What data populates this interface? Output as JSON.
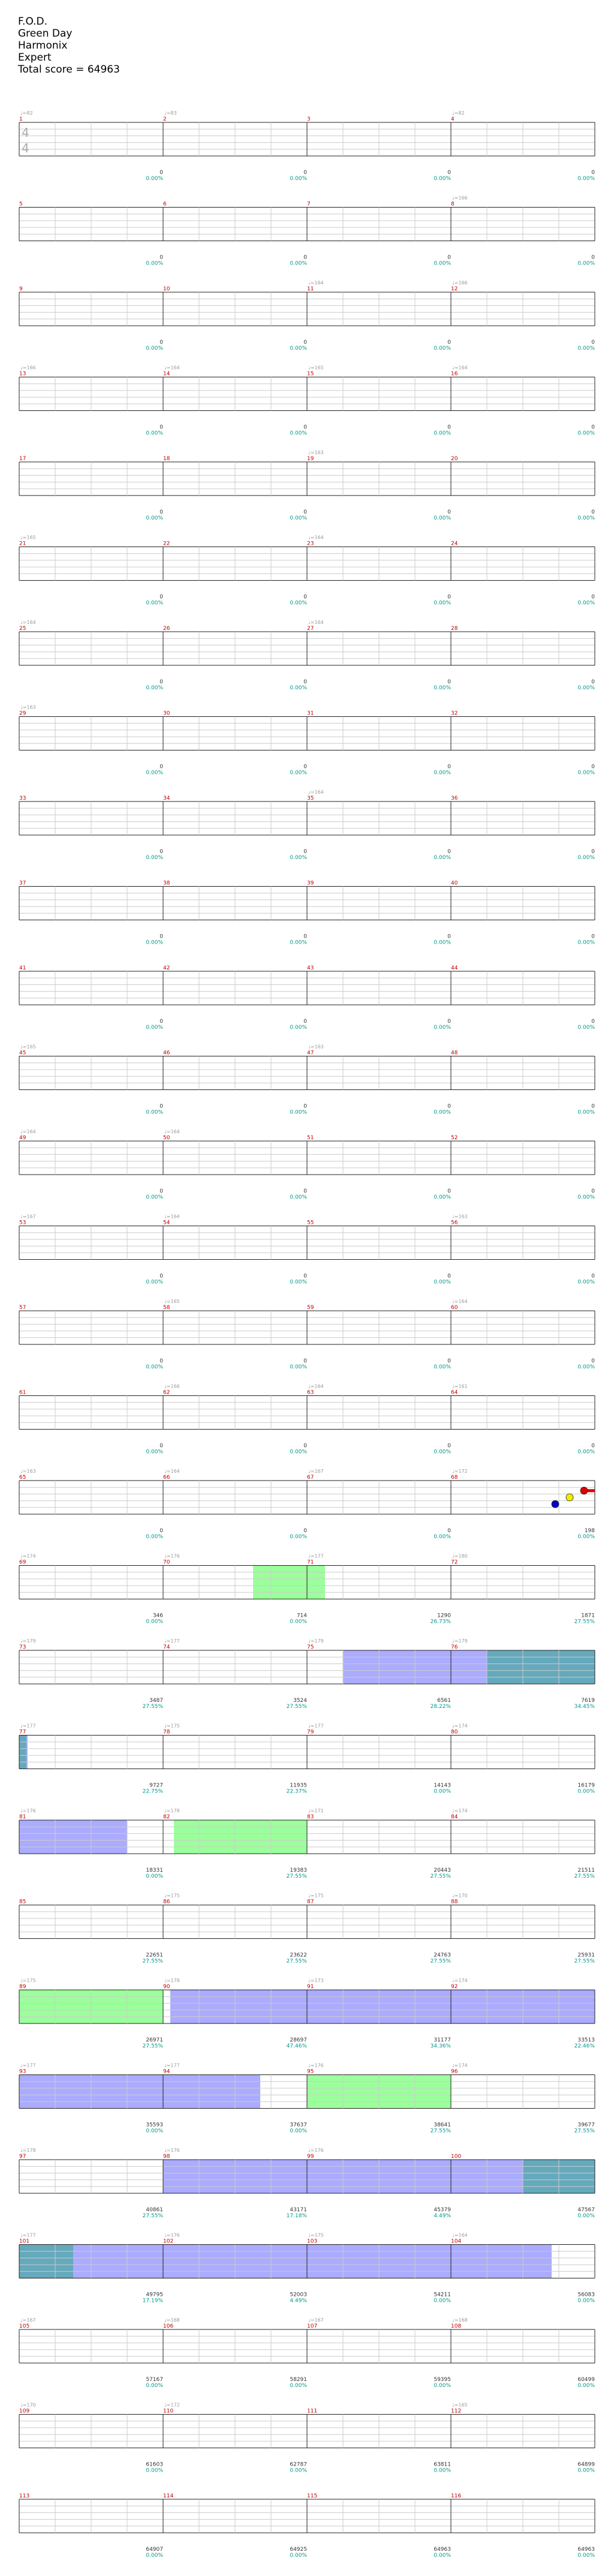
{
  "song": {
    "title": "F.O.D.",
    "artist": "Green Day",
    "studio": "Harmonix",
    "difficulty": "Expert",
    "total_score_label": "Total score = 64963"
  },
  "time_signature": {
    "num": "4",
    "den": "4"
  },
  "colors": {
    "green": "#22cc22",
    "red": "#dd0000",
    "yellow": "#eeee00",
    "blue": "#0000cc",
    "orange": "#ff9900",
    "star_power": "#66ff66",
    "overdrive": "#6666ff",
    "overlap": "#4a9ab0"
  },
  "measures": [
    {
      "n": "1",
      "bpm": "♩=82",
      "score": "0",
      "pct": "0.00%"
    },
    {
      "n": "2",
      "bpm": "♩=83",
      "score": "0",
      "pct": "0.00%"
    },
    {
      "n": "3",
      "bpm": "",
      "score": "0",
      "pct": "0.00%"
    },
    {
      "n": "4",
      "bpm": "♩=82",
      "score": "0",
      "pct": "0.00%"
    },
    {
      "n": "5",
      "bpm": "",
      "score": "0",
      "pct": "0.00%"
    },
    {
      "n": "6",
      "bpm": "",
      "score": "0",
      "pct": "0.00%"
    },
    {
      "n": "7",
      "bpm": "",
      "score": "0",
      "pct": "0.00%"
    },
    {
      "n": "8",
      "bpm": "♩=166",
      "score": "0",
      "pct": "0.00%"
    },
    {
      "n": "9",
      "bpm": "",
      "score": "0",
      "pct": "0.00%"
    },
    {
      "n": "10",
      "bpm": "",
      "score": "0",
      "pct": "0.00%"
    },
    {
      "n": "11",
      "bpm": "♩=164",
      "score": "0",
      "pct": "0.00%"
    },
    {
      "n": "12",
      "bpm": "♩=166",
      "score": "0",
      "pct": "0.00%"
    },
    {
      "n": "13",
      "bpm": "♩=166",
      "score": "0",
      "pct": "0.00%"
    },
    {
      "n": "14",
      "bpm": "♩=164",
      "score": "0",
      "pct": "0.00%"
    },
    {
      "n": "15",
      "bpm": "♩=165",
      "score": "0",
      "pct": "0.00%"
    },
    {
      "n": "16",
      "bpm": "♩=164",
      "score": "0",
      "pct": "0.00%"
    },
    {
      "n": "17",
      "bpm": "",
      "score": "0",
      "pct": "0.00%"
    },
    {
      "n": "18",
      "bpm": "",
      "score": "0",
      "pct": "0.00%"
    },
    {
      "n": "19",
      "bpm": "♩=163",
      "score": "0",
      "pct": "0.00%"
    },
    {
      "n": "20",
      "bpm": "",
      "score": "0",
      "pct": "0.00%"
    },
    {
      "n": "21",
      "bpm": "♩=165",
      "score": "0",
      "pct": "0.00%"
    },
    {
      "n": "22",
      "bpm": "",
      "score": "0",
      "pct": "0.00%"
    },
    {
      "n": "23",
      "bpm": "♩=164",
      "score": "0",
      "pct": "0.00%"
    },
    {
      "n": "24",
      "bpm": "",
      "score": "0",
      "pct": "0.00%"
    },
    {
      "n": "25",
      "bpm": "♩=164",
      "score": "0",
      "pct": "0.00%"
    },
    {
      "n": "26",
      "bpm": "",
      "score": "0",
      "pct": "0.00%"
    },
    {
      "n": "27",
      "bpm": "♩=164",
      "score": "0",
      "pct": "0.00%"
    },
    {
      "n": "28",
      "bpm": "",
      "score": "0",
      "pct": "0.00%"
    },
    {
      "n": "29",
      "bpm": "♩=163",
      "score": "0",
      "pct": "0.00%"
    },
    {
      "n": "30",
      "bpm": "",
      "score": "0",
      "pct": "0.00%"
    },
    {
      "n": "31",
      "bpm": "",
      "score": "0",
      "pct": "0.00%"
    },
    {
      "n": "32",
      "bpm": "",
      "score": "0",
      "pct": "0.00%"
    },
    {
      "n": "33",
      "bpm": "",
      "score": "0",
      "pct": "0.00%"
    },
    {
      "n": "34",
      "bpm": "",
      "score": "0",
      "pct": "0.00%"
    },
    {
      "n": "35",
      "bpm": "♩=164",
      "score": "0",
      "pct": "0.00%"
    },
    {
      "n": "36",
      "bpm": "",
      "score": "0",
      "pct": "0.00%"
    },
    {
      "n": "37",
      "bpm": "",
      "score": "0",
      "pct": "0.00%"
    },
    {
      "n": "38",
      "bpm": "",
      "score": "0",
      "pct": "0.00%"
    },
    {
      "n": "39",
      "bpm": "",
      "score": "0",
      "pct": "0.00%"
    },
    {
      "n": "40",
      "bpm": "",
      "score": "0",
      "pct": "0.00%"
    },
    {
      "n": "41",
      "bpm": "",
      "score": "0",
      "pct": "0.00%"
    },
    {
      "n": "42",
      "bpm": "",
      "score": "0",
      "pct": "0.00%"
    },
    {
      "n": "43",
      "bpm": "",
      "score": "0",
      "pct": "0.00%"
    },
    {
      "n": "44",
      "bpm": "",
      "score": "0",
      "pct": "0.00%"
    },
    {
      "n": "45",
      "bpm": "♩=165",
      "score": "0",
      "pct": "0.00%"
    },
    {
      "n": "46",
      "bpm": "",
      "score": "0",
      "pct": "0.00%"
    },
    {
      "n": "47",
      "bpm": "♩=163",
      "score": "0",
      "pct": "0.00%"
    },
    {
      "n": "48",
      "bpm": "",
      "score": "0",
      "pct": "0.00%"
    },
    {
      "n": "49",
      "bpm": "♩=164",
      "score": "0",
      "pct": "0.00%"
    },
    {
      "n": "50",
      "bpm": "♩=164",
      "score": "0",
      "pct": "0.00%"
    },
    {
      "n": "51",
      "bpm": "",
      "score": "0",
      "pct": "0.00%"
    },
    {
      "n": "52",
      "bpm": "",
      "score": "0",
      "pct": "0.00%"
    },
    {
      "n": "53",
      "bpm": "♩=167",
      "score": "0",
      "pct": "0.00%"
    },
    {
      "n": "54",
      "bpm": "♩=164",
      "score": "0",
      "pct": "0.00%"
    },
    {
      "n": "55",
      "bpm": "",
      "score": "0",
      "pct": "0.00%"
    },
    {
      "n": "56",
      "bpm": "♩=163",
      "score": "0",
      "pct": "0.00%"
    },
    {
      "n": "57",
      "bpm": "",
      "score": "0",
      "pct": "0.00%"
    },
    {
      "n": "58",
      "bpm": "♩=165",
      "score": "0",
      "pct": "0.00%"
    },
    {
      "n": "59",
      "bpm": "",
      "score": "0",
      "pct": "0.00%"
    },
    {
      "n": "60",
      "bpm": "♩=164",
      "score": "0",
      "pct": "0.00%"
    },
    {
      "n": "61",
      "bpm": "",
      "score": "0",
      "pct": "0.00%"
    },
    {
      "n": "62",
      "bpm": "♩=166",
      "score": "0",
      "pct": "0.00%"
    },
    {
      "n": "63",
      "bpm": "♩=164",
      "score": "0",
      "pct": "0.00%"
    },
    {
      "n": "64",
      "bpm": "♩=161",
      "score": "0",
      "pct": "0.00%"
    },
    {
      "n": "65",
      "bpm": "♩=163",
      "score": "0",
      "pct": "0.00%"
    },
    {
      "n": "66",
      "bpm": "♩=164",
      "score": "0",
      "pct": "0.00%"
    },
    {
      "n": "67",
      "bpm": "♩=167",
      "score": "0",
      "pct": "0.00%"
    },
    {
      "n": "68",
      "bpm": "♩=172",
      "score": "198",
      "pct": "0.00%"
    },
    {
      "n": "69",
      "bpm": "♩=174",
      "score": "346",
      "pct": "0.00%"
    },
    {
      "n": "70",
      "bpm": "♩=176",
      "score": "714",
      "pct": "0.00%"
    },
    {
      "n": "71",
      "bpm": "♩=177",
      "score": "1290",
      "pct": "26.73%"
    },
    {
      "n": "72",
      "bpm": "♩=180",
      "score": "1871",
      "pct": "27.55%"
    },
    {
      "n": "73",
      "bpm": "♩=179",
      "score": "3487",
      "pct": "27.55%"
    },
    {
      "n": "74",
      "bpm": "♩=177",
      "score": "3524",
      "pct": "27.55%"
    },
    {
      "n": "75",
      "bpm": "♩=179",
      "score": "6561",
      "pct": "28.22%"
    },
    {
      "n": "76",
      "bpm": "♩=179",
      "score": "7619",
      "pct": "34.45%"
    },
    {
      "n": "77",
      "bpm": "♩=177",
      "score": "9727",
      "pct": "22.75%"
    },
    {
      "n": "78",
      "bpm": "♩=175",
      "score": "11935",
      "pct": "22.37%"
    },
    {
      "n": "79",
      "bpm": "♩=177",
      "score": "14143",
      "pct": "0.00%"
    },
    {
      "n": "80",
      "bpm": "♩=174",
      "score": "16179",
      "pct": "0.00%"
    },
    {
      "n": "81",
      "bpm": "♩=176",
      "score": "18331",
      "pct": "0.00%"
    },
    {
      "n": "82",
      "bpm": "♩=178",
      "score": "19383",
      "pct": "27.55%"
    },
    {
      "n": "83",
      "bpm": "♩=171",
      "score": "20443",
      "pct": "27.55%"
    },
    {
      "n": "84",
      "bpm": "♩=174",
      "score": "21511",
      "pct": "27.55%"
    },
    {
      "n": "85",
      "bpm": "",
      "score": "22651",
      "pct": "27.55%"
    },
    {
      "n": "86",
      "bpm": "♩=175",
      "score": "23622",
      "pct": "27.55%"
    },
    {
      "n": "87",
      "bpm": "♩=175",
      "score": "24763",
      "pct": "27.55%"
    },
    {
      "n": "88",
      "bpm": "♩=170",
      "score": "25931",
      "pct": "27.55%"
    },
    {
      "n": "89",
      "bpm": "♩=175",
      "score": "26971",
      "pct": "27.55%"
    },
    {
      "n": "90",
      "bpm": "♩=178",
      "score": "28697",
      "pct": "47.46%"
    },
    {
      "n": "91",
      "bpm": "♩=173",
      "score": "31177",
      "pct": "34.36%"
    },
    {
      "n": "92",
      "bpm": "♩=174",
      "score": "33513",
      "pct": "22.46%"
    },
    {
      "n": "93",
      "bpm": "♩=177",
      "score": "35593",
      "pct": "0.00%"
    },
    {
      "n": "94",
      "bpm": "♩=177",
      "score": "37637",
      "pct": "0.00%"
    },
    {
      "n": "95",
      "bpm": "♩=176",
      "score": "38641",
      "pct": "27.55%"
    },
    {
      "n": "96",
      "bpm": "♩=174",
      "score": "39677",
      "pct": "27.55%"
    },
    {
      "n": "97",
      "bpm": "♩=178",
      "score": "40861",
      "pct": "27.55%"
    },
    {
      "n": "98",
      "bpm": "♩=176",
      "score": "43171",
      "pct": "17.18%"
    },
    {
      "n": "99",
      "bpm": "♩=176",
      "score": "45379",
      "pct": "4.49%"
    },
    {
      "n": "100",
      "bpm": "",
      "score": "47567",
      "pct": "0.00%"
    },
    {
      "n": "101",
      "bpm": "♩=177",
      "score": "49795",
      "pct": "17.19%"
    },
    {
      "n": "102",
      "bpm": "♩=176",
      "score": "52003",
      "pct": "4.49%"
    },
    {
      "n": "103",
      "bpm": "♩=175",
      "score": "54211",
      "pct": "0.00%"
    },
    {
      "n": "104",
      "bpm": "♩=164",
      "score": "56083",
      "pct": "0.00%"
    },
    {
      "n": "105",
      "bpm": "♩=167",
      "score": "57167",
      "pct": "0.00%"
    },
    {
      "n": "106",
      "bpm": "♩=168",
      "score": "58291",
      "pct": "0.00%"
    },
    {
      "n": "107",
      "bpm": "♩=167",
      "score": "59395",
      "pct": "0.00%"
    },
    {
      "n": "108",
      "bpm": "♩=168",
      "score": "60499",
      "pct": "0.00%"
    },
    {
      "n": "109",
      "bpm": "♩=170",
      "score": "61603",
      "pct": "0.00%"
    },
    {
      "n": "110",
      "bpm": "♩=172",
      "score": "62787",
      "pct": "0.00%"
    },
    {
      "n": "111",
      "bpm": "",
      "score": "63811",
      "pct": "0.00%"
    },
    {
      "n": "112",
      "bpm": "♩=165",
      "score": "64899",
      "pct": "0.00%"
    },
    {
      "n": "113",
      "bpm": "",
      "score": "64907",
      "pct": "0.00%"
    },
    {
      "n": "114",
      "bpm": "",
      "score": "64925",
      "pct": "0.00%"
    },
    {
      "n": "115",
      "bpm": "",
      "score": "64963",
      "pct": "0.00%"
    },
    {
      "n": "116",
      "bpm": "",
      "score": "64963",
      "pct": "0.00%"
    }
  ],
  "note_rows": [
    {
      "row": 16,
      "notes": [
        {
          "m": 68,
          "b": 2.9,
          "lane": "blue"
        },
        {
          "m": 68,
          "b": 3.3,
          "lane": "yellow"
        },
        {
          "m": 68,
          "b": 3.7,
          "lane": "red"
        }
      ],
      "sustains": [
        {
          "lane": "red",
          "m": 68,
          "b0": 3.8,
          "m1": 68,
          "b1": 4.0
        }
      ]
    },
    {
      "row": 17,
      "notes": [],
      "sustains": []
    },
    {
      "row": 18,
      "notes": [],
      "sustains": []
    },
    {
      "row": 19,
      "notes": [],
      "sustains": []
    },
    {
      "row": 20,
      "notes": [],
      "sustains": []
    },
    {
      "row": 21,
      "notes": [],
      "sustains": []
    },
    {
      "row": 22,
      "notes": [],
      "sustains": []
    },
    {
      "row": 23,
      "notes": [],
      "sustains": []
    },
    {
      "row": 24,
      "notes": [],
      "sustains": []
    },
    {
      "row": 25,
      "notes": [],
      "sustains": []
    },
    {
      "row": 26,
      "notes": [],
      "sustains": []
    },
    {
      "row": 27,
      "notes": [],
      "sustains": []
    },
    {
      "row": 28,
      "notes": [],
      "sustains": []
    }
  ],
  "phrase_rows": [
    {
      "row": 17,
      "sp": [
        [
          70,
          2.5,
          71,
          0.5
        ]
      ],
      "od": [],
      "ov": []
    },
    {
      "row": 18,
      "sp": [],
      "od": [
        [
          75,
          1.0,
          76,
          1.0
        ]
      ],
      "ov": [
        [
          76,
          1.0,
          77,
          0.0
        ]
      ]
    },
    {
      "row": 19,
      "sp": [],
      "od": [
        [
          77,
          0.2,
          81,
          0.0
        ]
      ],
      "ov": [
        [
          77,
          0.0,
          77,
          0.2
        ]
      ]
    },
    {
      "row": 20,
      "sp": [
        [
          82,
          0.3,
          83,
          0.0
        ]
      ],
      "od": [
        [
          81,
          0.0,
          81,
          3.0
        ]
      ],
      "ov": []
    },
    {
      "row": 22,
      "sp": [
        [
          89,
          0.0,
          90,
          0.0
        ]
      ],
      "od": [
        [
          90,
          0.2,
          93,
          0.0
        ]
      ],
      "ov": []
    },
    {
      "row": 23,
      "sp": [
        [
          95,
          0.0,
          96,
          0.0
        ]
      ],
      "od": [
        [
          93,
          0.0,
          94,
          2.7
        ]
      ],
      "ov": []
    },
    {
      "row": 24,
      "sp": [],
      "od": [
        [
          98,
          0.0,
          100,
          2.0
        ]
      ],
      "ov": [
        [
          100,
          2.0,
          101,
          0.0
        ]
      ]
    },
    {
      "row": 25,
      "sp": [],
      "od": [
        [
          101,
          1.5,
          104,
          2.8
        ]
      ],
      "ov": [
        [
          101,
          0.0,
          101,
          1.5
        ]
      ]
    }
  ]
}
